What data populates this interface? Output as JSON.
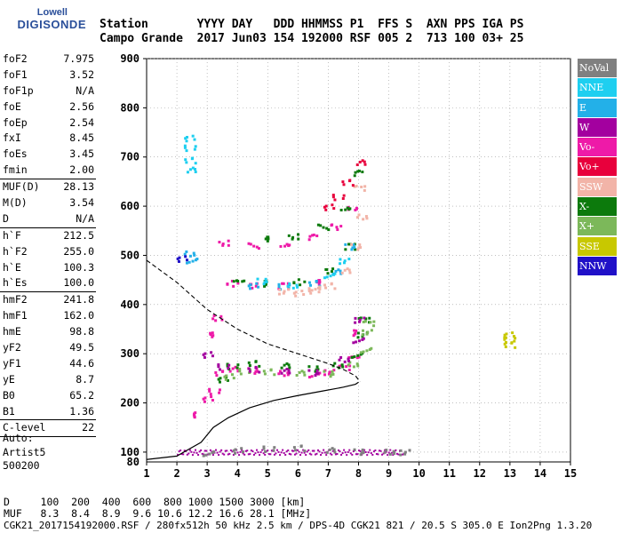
{
  "logo": {
    "line1": "Lowell",
    "line2": "DIGISONDE"
  },
  "header": {
    "row1": "Station       YYYY DAY   DDD HHMMSS P1  FFS S  AXN PPS IGA PS",
    "row2": "Campo Grande  2017 Jun03 154 192000 RSF 005 2  713 100 03+ 25"
  },
  "params_groups": [
    [
      [
        "foF2",
        "7.975"
      ],
      [
        "foF1",
        "3.52"
      ],
      [
        "foF1p",
        "N/A"
      ],
      [
        "foE",
        "2.56"
      ],
      [
        "foEp",
        "2.54"
      ],
      [
        "fxI",
        "8.45"
      ],
      [
        "foEs",
        "3.45"
      ],
      [
        "fmin",
        "2.00"
      ]
    ],
    [
      [
        "MUF(D)",
        "28.13"
      ],
      [
        "M(D)",
        "3.54"
      ],
      [
        "D",
        "N/A"
      ]
    ],
    [
      [
        "h`F",
        "212.5"
      ],
      [
        "h`F2",
        "255.0"
      ],
      [
        "h`E",
        "100.3"
      ],
      [
        "h`Es",
        "100.0"
      ]
    ],
    [
      [
        "hmF2",
        "241.8"
      ],
      [
        "hmF1",
        "162.0"
      ],
      [
        "hmE",
        "98.8"
      ],
      [
        "yF2",
        "49.5"
      ],
      [
        "yF1",
        "44.6"
      ],
      [
        "yE",
        "8.7"
      ],
      [
        "B0",
        "65.2"
      ],
      [
        "B1",
        "1.36"
      ]
    ],
    [
      [
        "C-level",
        "22"
      ]
    ]
  ],
  "auto_text": [
    "Auto:",
    "Artist5",
    "500200"
  ],
  "legend": [
    {
      "label": "NoVal",
      "color": "#808080"
    },
    {
      "label": "NNE",
      "color": "#1ecff0"
    },
    {
      "label": "E",
      "color": "#23b0e8"
    },
    {
      "label": "W",
      "color": "#a3009f"
    },
    {
      "label": "Vo-",
      "color": "#ee1aa8"
    },
    {
      "label": "Vo+",
      "color": "#e8003c"
    },
    {
      "label": "SSW",
      "color": "#f2b4a8"
    },
    {
      "label": "X-",
      "color": "#0c7a0c"
    },
    {
      "label": "X+",
      "color": "#7cb85a"
    },
    {
      "label": "SSE",
      "color": "#c8c800"
    },
    {
      "label": "NNW",
      "color": "#2010c8"
    }
  ],
  "bottom": {
    "line1": "D     100  200  400  600  800 1000 1500 3000 [km]",
    "line2": "MUF   8.3  8.4  8.9  9.6 10.6 12.2 16.6 28.1 [MHz]"
  },
  "footer": "CGK21_2017154192000.RSF / 280fx512h 50 kHz 2.5 km / DPS-4D CGK21 821 / 20.5 S 305.0 E Ion2Png 1.3.20",
  "chart_data": {
    "type": "scatter",
    "title": "",
    "xlabel": "",
    "ylabel": "",
    "xlim": [
      1,
      15
    ],
    "ylim": [
      80,
      900
    ],
    "x_ticks": [
      1,
      2,
      3,
      4,
      5,
      6,
      7,
      8,
      9,
      10,
      11,
      12,
      13,
      14,
      15
    ],
    "y_ticks": [
      100,
      200,
      300,
      400,
      500,
      600,
      700,
      800,
      900
    ],
    "series": [
      {
        "name": "Vo-",
        "color": "#ee1aa8",
        "points": [
          [
            3.0,
            210
          ],
          [
            3.2,
            225
          ],
          [
            3.4,
            262
          ],
          [
            3.8,
            270
          ],
          [
            4.5,
            268
          ],
          [
            5.5,
            262
          ],
          [
            6.5,
            260
          ],
          [
            7.0,
            264
          ],
          [
            7.5,
            275
          ],
          [
            7.8,
            300
          ],
          [
            7.95,
            345
          ],
          [
            3.8,
            445
          ],
          [
            4.5,
            440
          ],
          [
            5.5,
            440
          ],
          [
            6.5,
            447
          ],
          [
            3.5,
            527
          ],
          [
            4.5,
            522
          ],
          [
            5.5,
            526
          ],
          [
            6.5,
            540
          ],
          [
            7.2,
            560
          ],
          [
            7.8,
            600
          ],
          [
            2.7,
            178
          ],
          [
            3.3,
            375
          ],
          [
            3.1,
            340
          ]
        ]
      },
      {
        "name": "X-",
        "color": "#0c7a0c",
        "points": [
          [
            3.5,
            250
          ],
          [
            3.8,
            276
          ],
          [
            4.5,
            282
          ],
          [
            5.5,
            277
          ],
          [
            6.5,
            272
          ],
          [
            7.3,
            278
          ],
          [
            7.9,
            300
          ],
          [
            8.1,
            340
          ],
          [
            8.15,
            372
          ],
          [
            4.0,
            455
          ],
          [
            5.0,
            445
          ],
          [
            6.0,
            448
          ],
          [
            7.0,
            470
          ],
          [
            7.7,
            520
          ],
          [
            4.8,
            535
          ],
          [
            5.8,
            540
          ],
          [
            6.8,
            560
          ],
          [
            7.5,
            600
          ],
          [
            8.0,
            670
          ]
        ]
      },
      {
        "name": "E",
        "color": "#23b0e8",
        "points": [
          [
            4.5,
            440
          ],
          [
            5.5,
            438
          ],
          [
            6.5,
            445
          ],
          [
            7.2,
            468
          ],
          [
            7.7,
            520
          ],
          [
            2.4,
            505
          ],
          [
            2.45,
            492
          ]
        ]
      },
      {
        "name": "NNE",
        "color": "#1ecff0",
        "points": [
          [
            2.4,
            740
          ],
          [
            2.4,
            720
          ],
          [
            2.4,
            695
          ],
          [
            2.4,
            675
          ],
          [
            4.8,
            450
          ],
          [
            5.8,
            440
          ],
          [
            7.0,
            462
          ],
          [
            7.5,
            490
          ]
        ]
      },
      {
        "name": "SSW",
        "color": "#f2b4a8",
        "points": [
          [
            6.0,
            425
          ],
          [
            6.5,
            430
          ],
          [
            7.0,
            440
          ],
          [
            7.5,
            470
          ],
          [
            7.9,
            520
          ],
          [
            8.1,
            580
          ],
          [
            6.5,
            435
          ],
          [
            5.5,
            428
          ],
          [
            8.0,
            640
          ]
        ]
      },
      {
        "name": "X+",
        "color": "#7cb85a",
        "points": [
          [
            3.7,
            255
          ],
          [
            4.2,
            266
          ],
          [
            5.0,
            265
          ],
          [
            6.0,
            262
          ],
          [
            7.0,
            262
          ],
          [
            7.8,
            280
          ],
          [
            8.2,
            310
          ],
          [
            8.25,
            345
          ],
          [
            8.3,
            365
          ]
        ]
      },
      {
        "name": "Vo+",
        "color": "#e8003c",
        "points": [
          [
            7.0,
            600
          ],
          [
            7.3,
            620
          ],
          [
            7.6,
            650
          ],
          [
            8.0,
            690
          ]
        ]
      },
      {
        "name": "W",
        "color": "#a3009f",
        "points": [
          [
            3.0,
            300
          ],
          [
            3.5,
            275
          ],
          [
            4.5,
            270
          ],
          [
            5.5,
            266
          ],
          [
            6.5,
            264
          ],
          [
            7.5,
            290
          ],
          [
            7.95,
            330
          ],
          [
            8.0,
            370
          ]
        ]
      },
      {
        "name": "SSE",
        "color": "#c8c800",
        "points": [
          [
            12.95,
            340
          ],
          [
            12.95,
            330
          ],
          [
            12.95,
            320
          ]
        ]
      },
      {
        "name": "NNW",
        "color": "#2010c8",
        "points": [
          [
            2.15,
            495
          ]
        ]
      },
      {
        "name": "NoVal",
        "color": "#808080",
        "points": [
          [
            4.0,
            105
          ],
          [
            5.0,
            108
          ],
          [
            6.0,
            110
          ],
          [
            7.0,
            105
          ],
          [
            8.0,
            103
          ],
          [
            9.0,
            102
          ],
          [
            3.0,
            100
          ],
          [
            9.5,
            101
          ]
        ]
      }
    ],
    "es_trace": {
      "color": "#a3009f",
      "x_range": [
        2.0,
        9.5
      ],
      "y": 100
    },
    "profile_curve": [
      [
        1.0,
        85
      ],
      [
        2.0,
        92
      ],
      [
        2.8,
        120
      ],
      [
        3.2,
        150
      ],
      [
        3.7,
        170
      ],
      [
        4.4,
        190
      ],
      [
        5.2,
        205
      ],
      [
        6.0,
        215
      ],
      [
        6.8,
        224
      ],
      [
        7.5,
        232
      ],
      [
        7.9,
        238
      ],
      [
        8.0,
        242
      ]
    ],
    "muf_dashed": [
      [
        1.0,
        490
      ],
      [
        2.0,
        445
      ],
      [
        3.0,
        390
      ],
      [
        4.0,
        350
      ],
      [
        5.0,
        320
      ],
      [
        6.0,
        300
      ],
      [
        7.0,
        280
      ],
      [
        7.5,
        268
      ],
      [
        7.9,
        255
      ],
      [
        8.05,
        243
      ]
    ]
  }
}
